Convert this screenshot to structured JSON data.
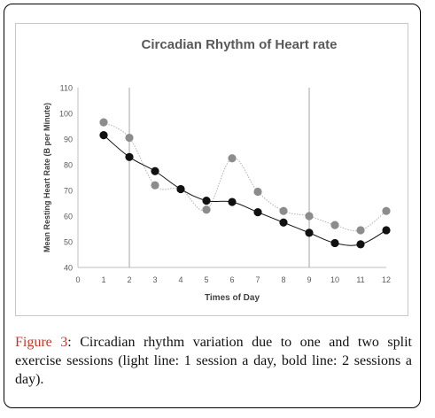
{
  "chart_data": {
    "type": "line",
    "title": "Circadian Rhythm of Heart rate",
    "xlabel": "Times of Day",
    "ylabel": "Mean Resting Heart Rate (B per Minute)",
    "xlim": [
      0,
      12
    ],
    "ylim": [
      40,
      110
    ],
    "x_ticks": [
      0,
      1,
      2,
      3,
      4,
      5,
      6,
      7,
      8,
      9,
      10,
      11,
      12
    ],
    "y_ticks": [
      40,
      50,
      60,
      70,
      80,
      90,
      100,
      110
    ],
    "x": [
      1,
      2,
      3,
      4,
      5,
      6,
      7,
      8,
      9,
      10,
      11,
      12
    ],
    "series": [
      {
        "values": [
          96.5,
          90.5,
          72,
          70.5,
          62.5,
          82.5,
          69.5,
          62,
          60,
          56.5,
          54.5,
          62
        ],
        "color": "#8c8c8c",
        "style": "dotted"
      },
      {
        "values": [
          91.5,
          83,
          77.5,
          70.5,
          66,
          65.5,
          61.5,
          57.5,
          53.5,
          49.5,
          49,
          54.5
        ],
        "color": "#111111",
        "style": "solid"
      }
    ],
    "vertical_markers_x": [
      2,
      9
    ],
    "grid": false
  },
  "caption": {
    "label": "Figure 3",
    "text": ": Circadian rhythm variation due to one and two split exercise sessions (light line: 1 session a day, bold line: 2 sessions a day)."
  }
}
